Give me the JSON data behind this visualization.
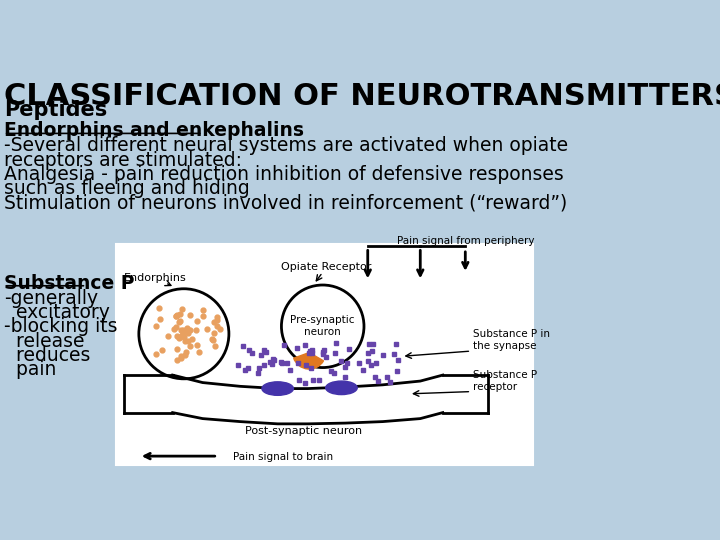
{
  "title": "CLASSIFICATION OF NEUROTRANSMITTERS",
  "title_fontsize": 22,
  "title_color": "#000000",
  "background_color": "#b8cfe0",
  "subtitle": "Peptides",
  "subtitle_fontsize": 15,
  "section1_header": "Endorphins and enkephalins",
  "section1_lines": [
    "-Several different neural systems are activated when opiate",
    "receptors are stimulated:",
    "Analgesia - pain reduction inhibition of defensive responses",
    "such as fleeing and hiding",
    "Stimulation of neurons involved in reinforcement (“reward”)"
  ],
  "section2_header": "Substance P",
  "section2_lines": [
    "-generally",
    "  excitatory",
    "-blocking its",
    "  release",
    "  reduces",
    "  pain"
  ],
  "text_fontsize": 13.5,
  "text_color": "#000000"
}
